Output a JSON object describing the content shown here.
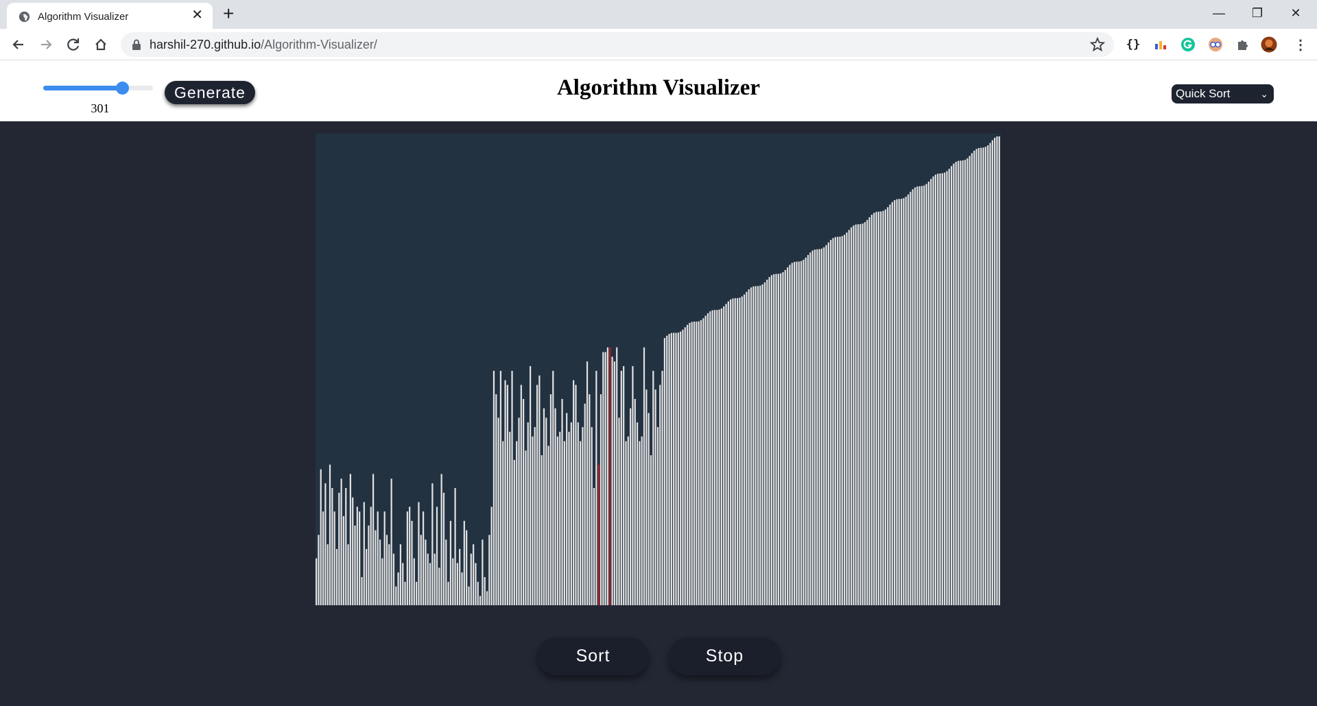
{
  "browser": {
    "tab_title": "Algorithm Visualizer",
    "url_host": "harshil-270.github.io",
    "url_path": "/Algorithm-Visualizer/"
  },
  "header": {
    "generate_label": "Generate",
    "array_size_value": "301",
    "title": "Algorithm Visualizer",
    "algorithm_selected": "Quick Sort"
  },
  "actions": {
    "sort_label": "Sort",
    "stop_label": "Stop"
  },
  "colors": {
    "bar": "#e2e2e2",
    "bar_active": "#b81c1c",
    "canvas_bg": "#233241",
    "page_bg": "#222733"
  },
  "chart_data": {
    "type": "bar",
    "series": [
      {
        "name": "",
        "value_range": [
          0,
          100
        ]
      }
    ],
    "values_sketch": {
      "unsorted_low_segment": [
        10,
        15,
        29,
        20,
        26,
        13,
        30,
        25,
        20,
        12,
        24,
        27,
        19,
        25,
        13,
        28,
        23,
        17,
        21,
        20,
        6,
        22,
        12,
        17,
        21,
        28,
        16,
        20,
        14,
        10,
        20,
        15,
        13,
        27,
        11,
        4,
        7,
        13,
        9,
        5,
        20,
        21,
        18,
        10,
        5,
        22,
        15,
        20,
        14,
        11,
        9,
        26,
        11,
        21,
        8,
        28,
        24,
        14,
        5,
        18,
        10,
        25,
        9,
        12,
        7,
        18,
        16,
        4,
        11,
        13,
        9,
        5,
        2,
        14,
        6,
        3,
        15,
        21,
        28,
        18,
        2,
        8,
        13,
        21,
        28,
        24,
        15,
        3,
        25,
        21,
        11,
        8,
        15,
        20,
        12,
        15,
        18,
        23,
        26
      ],
      "unsorted_mid_segment": [
        50,
        45,
        40,
        50,
        35,
        48,
        47,
        37,
        50,
        31,
        35,
        40,
        47,
        44,
        33,
        39,
        51,
        36,
        38,
        47,
        49,
        32,
        42,
        40,
        34,
        45,
        50,
        42,
        36,
        37,
        44,
        35,
        41,
        37,
        39,
        48,
        47,
        39,
        35,
        38,
        43,
        52,
        45,
        38,
        25
      ],
      "pivot_index_values": [
        55
      ],
      "partition_segment": [
        45,
        54,
        54,
        55,
        53,
        52,
        55,
        40,
        50,
        51,
        35,
        36,
        42,
        51,
        44,
        39,
        35,
        36,
        55,
        46,
        41,
        32,
        50,
        46,
        38,
        47,
        50
      ],
      "sorted_tail": "monotonically increasing from 57 to 100"
    },
    "highlighted_bars": 2,
    "bar_count": 301
  }
}
